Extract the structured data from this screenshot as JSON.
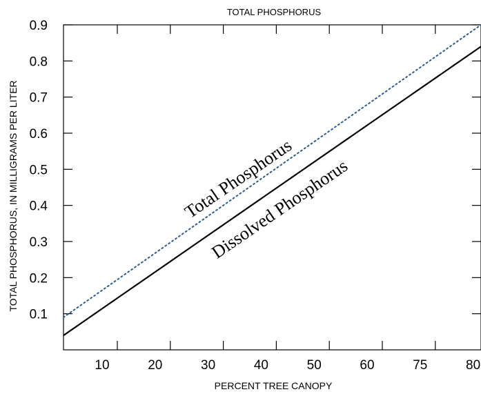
{
  "chart_data": {
    "type": "line",
    "title": "TOTAL PHOSPHORUS",
    "xlabel": "PERCENT TREE CANOPY",
    "ylabel": "TOTAL PHOSPHORUS, IN MILLIGRAMS PER LITER",
    "x_tick_labels": [
      "10",
      "20",
      "30",
      "40",
      "50",
      "60",
      "75",
      "80"
    ],
    "y_ticks": [
      "0.1",
      "0.2",
      "0.3",
      "0.4",
      "0.5",
      "0.6",
      "0.7",
      "0.8",
      "0.9"
    ],
    "ylim": [
      0,
      0.9
    ],
    "grid": false,
    "series": [
      {
        "name": "Total Phosphorus",
        "style": "dotted",
        "color": "#2b5a8c",
        "x_ticks": [
          0,
          8
        ],
        "values": [
          0.09,
          0.9
        ]
      },
      {
        "name": "Dissolved Phosphorus",
        "style": "solid",
        "color": "#000000",
        "x_ticks": [
          0,
          8
        ],
        "values": [
          0.04,
          0.84
        ]
      }
    ]
  }
}
